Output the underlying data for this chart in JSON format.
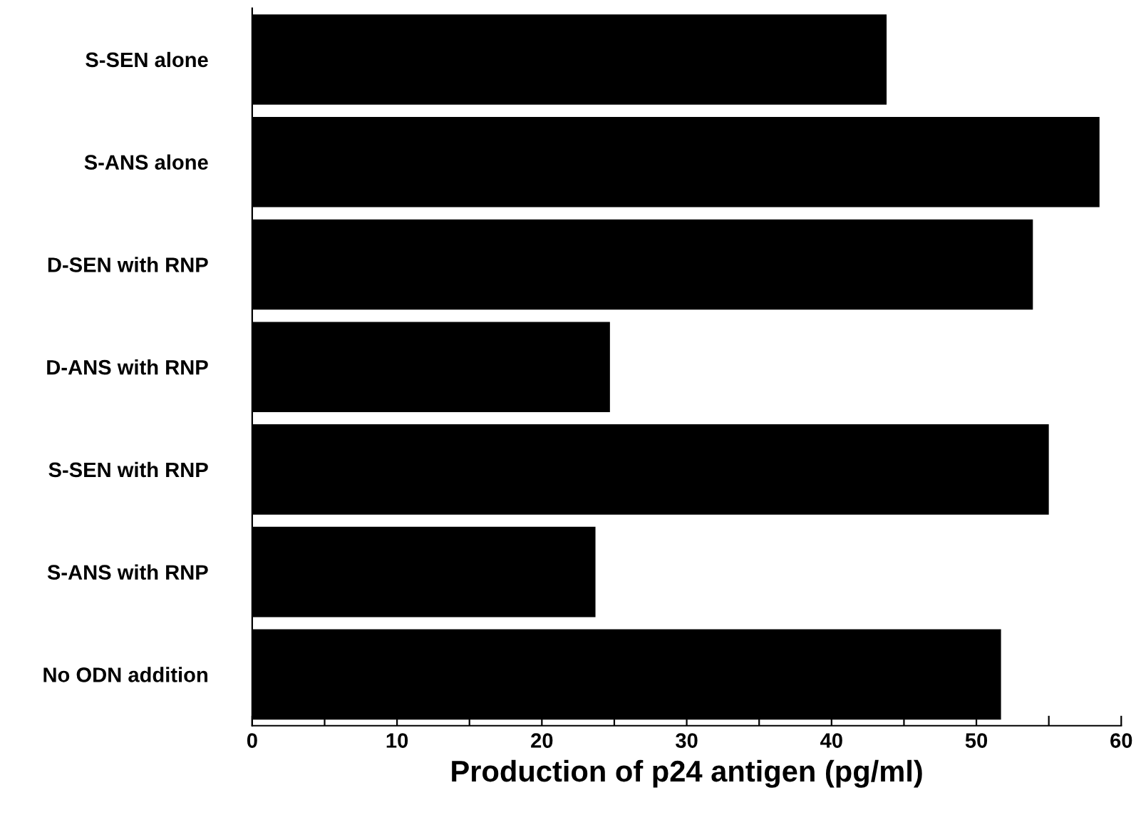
{
  "chart_data": {
    "type": "bar",
    "orientation": "horizontal",
    "categories": [
      "S-SEN alone",
      "S-ANS alone",
      "D-SEN with RNP",
      "D-ANS with RNP",
      "S-SEN with RNP",
      "S-ANS with RNP",
      "No ODN addition"
    ],
    "values": [
      43.8,
      58.5,
      53.9,
      24.7,
      55.0,
      23.7,
      51.7
    ],
    "color": "#000000",
    "xlabel": "Production of p24 antigen (pg/ml)",
    "xlim": [
      0,
      60
    ],
    "xticks": [
      0,
      {
        "value": 5,
        "label": null
      },
      10,
      {
        "value": 15,
        "label": null
      },
      20,
      {
        "value": 25,
        "label": null
      },
      30,
      {
        "value": 35,
        "label": null
      },
      40,
      {
        "value": 45,
        "label": null
      },
      50,
      {
        "value": 55,
        "label": null
      },
      60
    ],
    "grid": false
  }
}
